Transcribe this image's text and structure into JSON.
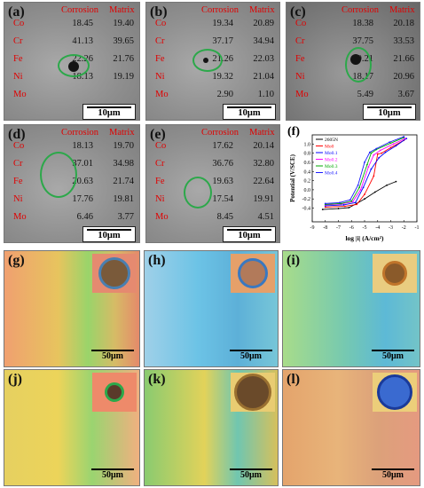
{
  "colors": {
    "red_text": "#e00000",
    "ring_green": "#2ca84a"
  },
  "header": {
    "corrosion": "Corrosion",
    "matrix": "Matrix"
  },
  "elements": [
    "Co",
    "Cr",
    "Fe",
    "Ni",
    "Mo"
  ],
  "sem_panels": [
    {
      "label": "(a)",
      "scale": "10μm",
      "rows": [
        [
          "18.45",
          "19.40"
        ],
        [
          "41.13",
          "39.65"
        ],
        [
          "22.26",
          "21.76"
        ],
        [
          "18.13",
          "19.19"
        ],
        [
          "",
          ""
        ]
      ]
    },
    {
      "label": "(b)",
      "scale": "10μm",
      "rows": [
        [
          "19.34",
          "20.89"
        ],
        [
          "37.17",
          "34.94"
        ],
        [
          "21.26",
          "22.03"
        ],
        [
          "19.32",
          "21.04"
        ],
        [
          "2.90",
          "1.10"
        ]
      ]
    },
    {
      "label": "(c)",
      "scale": "10μm",
      "rows": [
        [
          "18.38",
          "20.18"
        ],
        [
          "37.75",
          "33.53"
        ],
        [
          "20.21",
          "21.66"
        ],
        [
          "18.17",
          "20.96"
        ],
        [
          "5.49",
          "3.67"
        ]
      ]
    },
    {
      "label": "(d)",
      "scale": "10μm",
      "rows": [
        [
          "18.13",
          "19.70"
        ],
        [
          "37.01",
          "34.98"
        ],
        [
          "20.63",
          "21.74"
        ],
        [
          "17.76",
          "19.81"
        ],
        [
          "6.46",
          "3.77"
        ]
      ]
    },
    {
      "label": "(e)",
      "scale": "10μm",
      "rows": [
        [
          "17.62",
          "20.14"
        ],
        [
          "36.76",
          "32.80"
        ],
        [
          "19.63",
          "22.64"
        ],
        [
          "17.54",
          "19.91"
        ],
        [
          "8.45",
          "4.51"
        ]
      ]
    }
  ],
  "chart_data": {
    "type": "line",
    "label": "(f)",
    "xlabel": "log |i| (A/cm²)",
    "ylabel": "Potential (V/SCE)",
    "xlim": [
      -9,
      -1
    ],
    "ylim": [
      -0.7,
      1.2
    ],
    "xticks": [
      "-9",
      "-8",
      "-7",
      "-6",
      "-5",
      "-4",
      "-3",
      "-2",
      "-1"
    ],
    "yticks": [
      "-0.4",
      "-0.2",
      "0.0",
      "0.2",
      "0.4",
      "0.6",
      "0.8",
      "1.0"
    ],
    "legend_position": "top-left",
    "series": [
      {
        "name": "2605N",
        "color": "#000000",
        "x": [
          -8.2,
          -7.0,
          -6.2,
          -5.6,
          -5.0,
          -4.2,
          -3.3,
          -2.6
        ],
        "y": [
          -0.43,
          -0.41,
          -0.39,
          -0.3,
          -0.2,
          -0.05,
          0.1,
          0.18
        ]
      },
      {
        "name": "Mo0",
        "color": "#ff0000",
        "x": [
          -8.0,
          -6.5,
          -5.6,
          -5.0,
          -4.3,
          -4.0,
          -3.7,
          -3.0,
          -2.0
        ],
        "y": [
          -0.38,
          -0.36,
          -0.32,
          -0.1,
          0.3,
          0.78,
          0.8,
          0.92,
          1.08
        ]
      },
      {
        "name": "Mo0.1",
        "color": "#0000ff",
        "x": [
          -8.0,
          -6.6,
          -5.7,
          -5.1,
          -4.5,
          -3.9,
          -3.4,
          -2.6,
          -1.8
        ],
        "y": [
          -0.35,
          -0.33,
          -0.28,
          0.05,
          0.45,
          0.7,
          0.82,
          0.96,
          1.12
        ]
      },
      {
        "name": "Mo0.2",
        "color": "#ff00ff",
        "x": [
          -8.0,
          -6.8,
          -5.9,
          -5.3,
          -4.7,
          -4.3,
          -3.8,
          -2.8,
          -1.9
        ],
        "y": [
          -0.33,
          -0.31,
          -0.26,
          0.0,
          0.5,
          0.76,
          0.86,
          1.0,
          1.12
        ]
      },
      {
        "name": "Mo0.3",
        "color": "#00aa00",
        "x": [
          -8.0,
          -6.8,
          -6.0,
          -5.4,
          -4.8,
          -4.5,
          -4.1,
          -3.0,
          -2.0
        ],
        "y": [
          -0.32,
          -0.3,
          -0.25,
          0.05,
          0.55,
          0.8,
          0.88,
          1.02,
          1.14
        ]
      },
      {
        "name": "Mo0.4",
        "color": "#1a1aff",
        "x": [
          -8.0,
          -6.9,
          -6.1,
          -5.5,
          -5.0,
          -4.6,
          -4.1,
          -3.1,
          -2.0
        ],
        "y": [
          -0.3,
          -0.28,
          -0.22,
          0.1,
          0.6,
          0.82,
          0.9,
          1.04,
          1.16
        ]
      }
    ]
  },
  "micro_panels": [
    {
      "label": "(g)",
      "scale": "50μm",
      "grad": "linear-gradient(90deg,#f0a070 0%,#e7c45e 40%,#9ad46a 62%,#d6bb66 82%,#e58a6a 100%)",
      "inset_bg": "#e58a70",
      "inset_dot": "#7a5a3a",
      "inset_ring": "#4a7fb0",
      "dot_size": 30
    },
    {
      "label": "(h)",
      "scale": "50μm",
      "grad": "linear-gradient(90deg,#9fd0e8 0%,#6cc3e6 40%,#5db0d8 70%,#77c6d8 100%)",
      "inset_bg": "#e5a06a",
      "inset_dot": "#b27a5a",
      "inset_ring": "#3a78c0",
      "dot_size": 28
    },
    {
      "label": "(i)",
      "scale": "50μm",
      "grad": "linear-gradient(90deg,#a8dc8a 0%,#76c9b0 45%,#5db9d6 75%,#73c4c8 100%)",
      "inset_bg": "#e9cc80",
      "inset_dot": "#8a5a2a",
      "inset_ring": "#c0742a",
      "dot_size": 22
    },
    {
      "label": "(j)",
      "scale": "50μm",
      "grad": "linear-gradient(90deg,#e6d060 0%,#ecd45a 40%,#9ad470 65%,#f0b080 100%)",
      "inset_bg": "#ee8a6a",
      "inset_dot": "#5a3a2a",
      "inset_ring": "#2ca84a",
      "dot_size": 16
    },
    {
      "label": "(k)",
      "scale": "50μm",
      "grad": "linear-gradient(90deg,#8acb70 0%,#e2d25a 45%,#70c6b0 70%,#d6c05c 100%)",
      "inset_bg": "#e9cc72",
      "inset_dot": "#6a4a2a",
      "inset_ring": "#9a7030",
      "dot_size": 36
    },
    {
      "label": "(l)",
      "scale": "50μm",
      "grad": "linear-gradient(90deg,#e4a46c 0%,#e8b47a 40%,#dca17a 70%,#e59a80 100%)",
      "inset_bg": "#ecce7a",
      "inset_dot": "#3a6ad0",
      "inset_ring": "#1a3a9a",
      "dot_size": 34
    }
  ]
}
